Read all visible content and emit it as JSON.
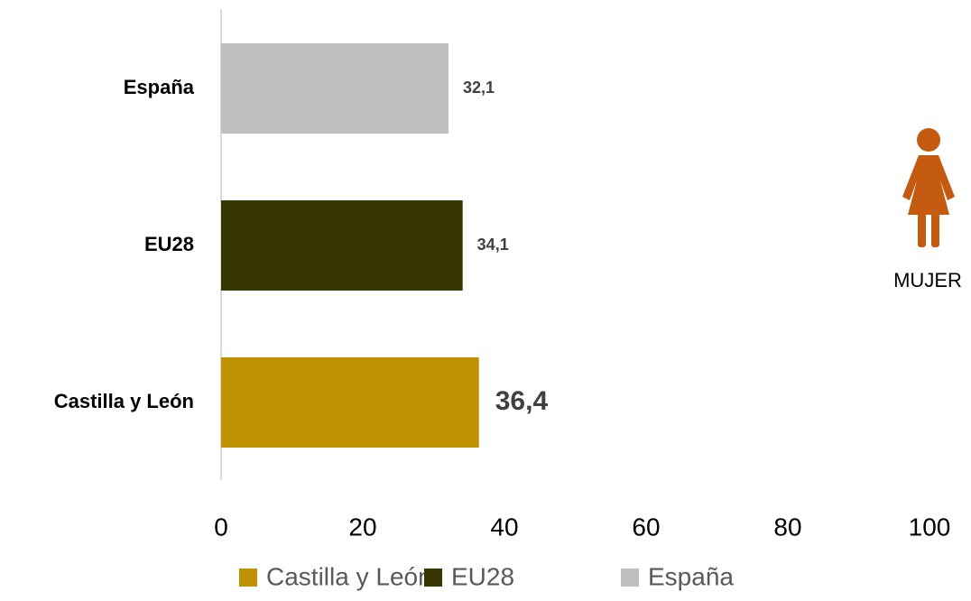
{
  "chart_data": {
    "type": "bar",
    "orientation": "horizontal",
    "categories": [
      "Castilla y León",
      "EU28",
      "España"
    ],
    "values": [
      36.4,
      34.1,
      32.1
    ],
    "value_labels": [
      "36,4",
      "34,1",
      "32,1"
    ],
    "colors": [
      "#bf9000",
      "#363600",
      "#bfbfbf"
    ],
    "xlim": [
      0,
      100
    ],
    "xticks": [
      0,
      20,
      40,
      60,
      80,
      100
    ],
    "grid": false,
    "legend": "bottom",
    "annotation": "MUJER"
  }
}
